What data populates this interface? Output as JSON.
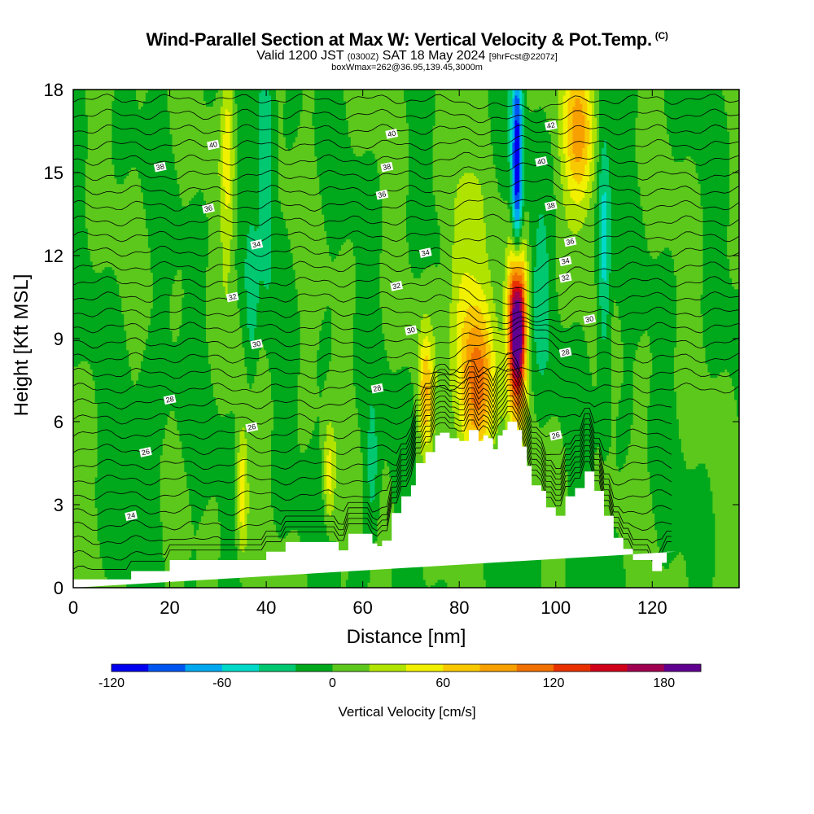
{
  "header": {
    "title": "Wind-Parallel Section at Max W: Vertical Velocity & Pot.Temp.",
    "copyright": "(C)",
    "valid_prefix": "Valid 1200 JST",
    "valid_utc": "(0300Z)",
    "valid_date": "SAT 18 May 2024",
    "forecast_info": "[9hrFcst@2207z]",
    "box_info": "boxWmax=262@36.95,139.45,3000m"
  },
  "chart_data": {
    "type": "heatmap",
    "xlabel": "Distance [nm]",
    "ylabel": "Height [Kft MSL]",
    "xlim": [
      0,
      138
    ],
    "ylim": [
      0,
      18
    ],
    "x_ticks": [
      "0",
      "20",
      "40",
      "60",
      "80",
      "100",
      "120"
    ],
    "y_ticks": [
      "0",
      "3",
      "6",
      "9",
      "12",
      "15",
      "18"
    ],
    "colorbar": {
      "title": "Vertical Velocity [cm/s]",
      "tick_labels": [
        "-120",
        "-60",
        "0",
        "60",
        "120",
        "180"
      ],
      "tick_values": [
        -120,
        -60,
        0,
        60,
        120,
        180
      ],
      "min": -120,
      "max": 200,
      "colors": [
        "#0000f0",
        "#0055f0",
        "#00a8f0",
        "#00d8c8",
        "#00c870",
        "#00a81c",
        "#5cc81c",
        "#b0e400",
        "#f0f000",
        "#f8c800",
        "#f8a000",
        "#f07000",
        "#e83000",
        "#d00018",
        "#a00050",
        "#600090"
      ]
    },
    "terrain_profile": {
      "x": [
        0,
        12,
        12,
        20,
        20,
        40,
        40,
        44,
        44,
        55,
        55,
        57,
        57,
        62,
        62,
        63,
        63,
        64,
        64,
        66,
        66,
        68,
        68,
        70,
        70,
        71,
        71,
        73,
        73,
        75,
        75,
        76,
        76,
        78,
        78,
        80,
        80,
        82,
        82,
        84,
        84,
        85,
        85,
        86,
        86,
        87,
        87,
        88,
        88,
        89,
        89,
        90,
        90,
        91,
        91,
        92,
        92,
        93,
        93,
        94,
        94,
        95,
        95,
        97,
        97,
        98,
        98,
        100,
        100,
        102,
        102,
        104,
        104,
        106,
        106,
        108,
        108,
        110,
        110,
        112,
        112,
        114,
        114,
        116,
        116,
        118,
        118,
        120,
        120,
        122,
        122,
        123,
        123,
        125,
        125,
        138
      ],
      "y": [
        0.3,
        0.3,
        0.6,
        0.6,
        1.0,
        1.0,
        1.3,
        1.3,
        1.65,
        1.65,
        1.35,
        1.35,
        1.95,
        1.95,
        1.6,
        1.6,
        1.5,
        1.5,
        1.7,
        1.7,
        2.7,
        2.7,
        3.3,
        3.3,
        3.7,
        3.7,
        4.5,
        4.5,
        4.9,
        4.9,
        5.5,
        5.5,
        5.6,
        5.6,
        5.4,
        5.4,
        5.3,
        5.3,
        5.7,
        5.7,
        5.3,
        5.3,
        5.5,
        5.5,
        5.4,
        5.4,
        5.0,
        5.0,
        5.5,
        5.5,
        5.7,
        5.7,
        6.0,
        6.0,
        6.0,
        6.0,
        5.7,
        5.7,
        5.1,
        5.1,
        4.4,
        4.4,
        3.7,
        3.7,
        3.5,
        3.5,
        2.9,
        2.9,
        2.6,
        2.6,
        3.3,
        3.3,
        3.6,
        3.6,
        4.2,
        4.2,
        3.5,
        3.5,
        2.6,
        2.6,
        1.8,
        1.8,
        1.4,
        1.4,
        1.0,
        1.0,
        1.0,
        1.0,
        0.6,
        0.6,
        0.9,
        0.9,
        1.3,
        1.3
      ],
      "label": ""
    },
    "velocity_features": [
      {
        "x": 92,
        "y": 9.5,
        "sx": 1.2,
        "sy": 2.0,
        "value": 262
      },
      {
        "x": 84,
        "y": 7.5,
        "sx": 2.6,
        "sy": 2.2,
        "value": 110
      },
      {
        "x": 92,
        "y": 14.5,
        "sx": 0.8,
        "sy": 3.5,
        "value": -120
      },
      {
        "x": 105,
        "y": 16.5,
        "sx": 2.2,
        "sy": 2.0,
        "value": 90
      },
      {
        "x": 73,
        "y": 7.0,
        "sx": 1.0,
        "sy": 1.5,
        "value": 70
      },
      {
        "x": 35,
        "y": 3.5,
        "sx": 0.8,
        "sy": 1.6,
        "value": 60
      },
      {
        "x": 53,
        "y": 4.0,
        "sx": 0.8,
        "sy": 1.3,
        "value": 50
      },
      {
        "x": 80,
        "y": 11.0,
        "sx": 2.0,
        "sy": 3.0,
        "value": 45
      },
      {
        "x": 110,
        "y": 12.0,
        "sx": 1.0,
        "sy": 3.5,
        "value": -55
      },
      {
        "x": 40,
        "y": 15.5,
        "sx": 1.2,
        "sy": 3.0,
        "value": -45
      },
      {
        "x": 32,
        "y": 16.0,
        "sx": 1.0,
        "sy": 3.0,
        "value": 45
      },
      {
        "x": 97,
        "y": 10.5,
        "sx": 1.4,
        "sy": 2.0,
        "value": -25
      },
      {
        "x": 62,
        "y": 4.0,
        "sx": 1.0,
        "sy": 1.5,
        "value": -30
      },
      {
        "x": 37,
        "y": 10.0,
        "sx": 1.0,
        "sy": 2.0,
        "value": -30
      },
      {
        "x": 15,
        "y": 5.0,
        "sx": 5.0,
        "sy": 2.5,
        "value": -12
      }
    ],
    "isentrope_labels": [
      {
        "x": 12,
        "y": 2.6,
        "text": "24"
      },
      {
        "x": 15,
        "y": 4.9,
        "text": "26"
      },
      {
        "x": 20,
        "y": 6.8,
        "text": "28"
      },
      {
        "x": 37,
        "y": 5.8,
        "text": "26"
      },
      {
        "x": 38,
        "y": 8.8,
        "text": "30"
      },
      {
        "x": 33,
        "y": 10.5,
        "text": "32"
      },
      {
        "x": 38,
        "y": 12.4,
        "text": "34"
      },
      {
        "x": 28,
        "y": 13.7,
        "text": "36"
      },
      {
        "x": 18,
        "y": 15.2,
        "text": "38"
      },
      {
        "x": 29,
        "y": 16.0,
        "text": "40"
      },
      {
        "x": 63,
        "y": 7.2,
        "text": "28"
      },
      {
        "x": 70,
        "y": 9.3,
        "text": "30"
      },
      {
        "x": 67,
        "y": 10.9,
        "text": "32"
      },
      {
        "x": 73,
        "y": 12.1,
        "text": "34"
      },
      {
        "x": 64,
        "y": 14.2,
        "text": "36"
      },
      {
        "x": 65,
        "y": 15.2,
        "text": "38"
      },
      {
        "x": 66,
        "y": 16.4,
        "text": "40"
      },
      {
        "x": 99,
        "y": 16.7,
        "text": "42"
      },
      {
        "x": 97,
        "y": 15.4,
        "text": "40"
      },
      {
        "x": 99,
        "y": 13.8,
        "text": "38"
      },
      {
        "x": 103,
        "y": 12.5,
        "text": "36"
      },
      {
        "x": 102,
        "y": 11.8,
        "text": "34"
      },
      {
        "x": 102,
        "y": 11.2,
        "text": "32"
      },
      {
        "x": 107,
        "y": 9.7,
        "text": "30"
      },
      {
        "x": 102,
        "y": 8.5,
        "text": "28"
      },
      {
        "x": 100,
        "y": 5.5,
        "text": "26"
      }
    ]
  }
}
